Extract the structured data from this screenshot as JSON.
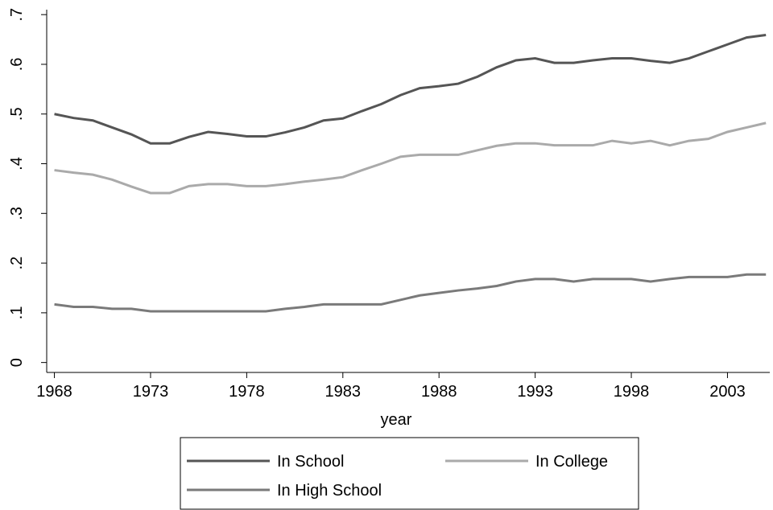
{
  "chart_data": {
    "type": "line",
    "x_label": "year",
    "x": [
      1968,
      1969,
      1970,
      1971,
      1972,
      1973,
      1974,
      1975,
      1976,
      1977,
      1978,
      1979,
      1980,
      1981,
      1982,
      1983,
      1984,
      1985,
      1986,
      1987,
      1988,
      1989,
      1990,
      1991,
      1992,
      1993,
      1994,
      1995,
      1996,
      1997,
      1998,
      1999,
      2000,
      2001,
      2002,
      2003,
      2004,
      2005
    ],
    "series": [
      {
        "name": "In School",
        "color": "#555555",
        "values": [
          0.5,
          0.492,
          0.487,
          0.473,
          0.459,
          0.441,
          0.441,
          0.454,
          0.464,
          0.46,
          0.455,
          0.455,
          0.463,
          0.473,
          0.487,
          0.491,
          0.506,
          0.52,
          0.538,
          0.552,
          0.556,
          0.561,
          0.575,
          0.594,
          0.608,
          0.612,
          0.603,
          0.603,
          0.608,
          0.612,
          0.612,
          0.607,
          0.603,
          0.612,
          0.626,
          0.64,
          0.654,
          0.659
        ]
      },
      {
        "name": "In College",
        "color": "#aaaaaa",
        "values": [
          0.387,
          0.382,
          0.378,
          0.368,
          0.354,
          0.341,
          0.341,
          0.355,
          0.359,
          0.359,
          0.355,
          0.355,
          0.359,
          0.364,
          0.368,
          0.373,
          0.387,
          0.4,
          0.414,
          0.418,
          0.418,
          0.418,
          0.427,
          0.436,
          0.441,
          0.441,
          0.437,
          0.437,
          0.437,
          0.446,
          0.441,
          0.446,
          0.437,
          0.446,
          0.45,
          0.464,
          0.473,
          0.482
        ]
      },
      {
        "name": "In High School",
        "color": "#7a7a7a",
        "values": [
          0.117,
          0.112,
          0.112,
          0.108,
          0.108,
          0.103,
          0.103,
          0.103,
          0.103,
          0.103,
          0.103,
          0.103,
          0.108,
          0.112,
          0.117,
          0.117,
          0.117,
          0.117,
          0.126,
          0.135,
          0.14,
          0.145,
          0.149,
          0.154,
          0.163,
          0.168,
          0.168,
          0.163,
          0.168,
          0.168,
          0.168,
          0.163,
          0.168,
          0.172,
          0.172,
          0.172,
          0.177,
          0.177
        ]
      }
    ],
    "xlim": [
      1967.6,
      2005.2
    ],
    "xticks": [
      1968,
      1973,
      1978,
      1983,
      1988,
      1993,
      1998,
      2003
    ],
    "ylim": [
      -0.02,
      0.71
    ],
    "yticks": [
      0,
      {
        "value": 0.1,
        "label": ".1"
      },
      {
        "value": 0.2,
        "label": ".2"
      },
      {
        "value": 0.3,
        "label": ".3"
      },
      {
        "value": 0.4,
        "label": ".4"
      },
      {
        "value": 0.5,
        "label": ".5"
      },
      {
        "value": 0.6,
        "label": ".6"
      },
      {
        "value": 0.7,
        "label": ".7"
      }
    ],
    "legend": "bottom"
  }
}
